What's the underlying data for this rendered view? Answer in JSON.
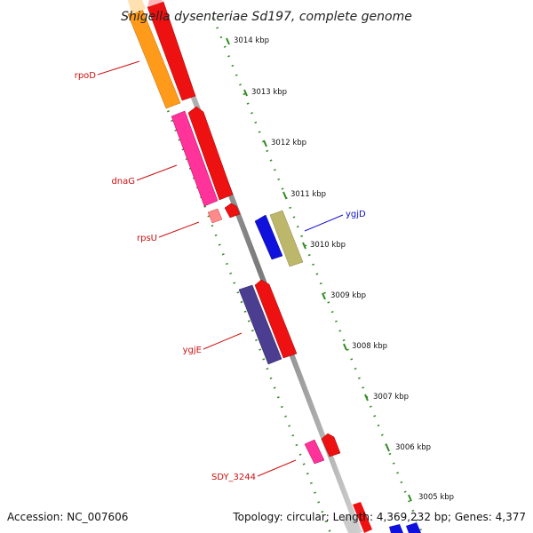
{
  "title": "Shigella dysenteriae Sd197, complete genome",
  "footer": {
    "accession": "Accession: NC_007606",
    "summary": "Topology: circular; Length: 4,369,232 bp; Genes: 4,377"
  },
  "ticks": [
    "3014 kbp",
    "3013 kbp",
    "3012 kbp",
    "3011 kbp",
    "3010 kbp",
    "3009 kbp",
    "3008 kbp",
    "3007 kbp",
    "3006 kbp",
    "3005 kbp"
  ],
  "gene_labels": {
    "rpoD": "rpoD",
    "dnaG": "dnaG",
    "rpsU": "rpsU",
    "ygjD": "ygjD",
    "ygjE": "ygjE",
    "sdy3244": "SDY_3244"
  },
  "colors": {
    "backbone": "#8c8c8c",
    "tick_dots": "#2e8b1f",
    "label_red": "#cc1010",
    "label_blue": "#1010cc",
    "orange": "#ff9a1a",
    "red": "#ee1111",
    "pink": "#ff3399",
    "light_pink": "#ff8a8a",
    "blue": "#1111dd",
    "olive": "#bdb76b",
    "purple": "#4b3d8f"
  }
}
